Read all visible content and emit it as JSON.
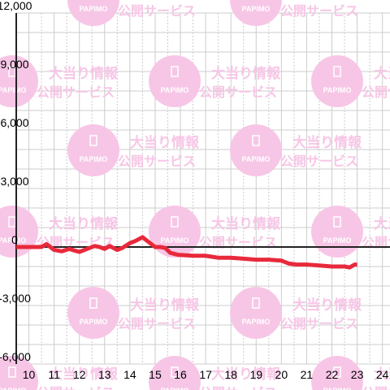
{
  "watermark": {
    "logo_text": "PAPIMO",
    "line1": "大当り情報",
    "line2": "公開サービス",
    "color": "#f7c6e6"
  },
  "colors": {
    "line": "#e8293b",
    "axis": "#222222",
    "grid_major": "#cccccc",
    "grid_minor": "#cccccc"
  },
  "chart_data": {
    "type": "line",
    "title": "",
    "xlabel": "",
    "ylabel": "",
    "xlim": [
      9.5,
      24.3
    ],
    "ylim": [
      -6000,
      12000
    ],
    "x_ticks": [
      10,
      11,
      12,
      13,
      14,
      15,
      16,
      17,
      18,
      19,
      20,
      21,
      22,
      23,
      24
    ],
    "y_ticks": [
      {
        "value": -6000,
        "label": "-6,000"
      },
      {
        "value": -3000,
        "label": "-3,000"
      },
      {
        "value": 0,
        "label": "0"
      },
      {
        "value": 3000,
        "label": "3,000"
      },
      {
        "value": 6000,
        "label": "6,000"
      },
      {
        "value": 9000,
        "label": "9,000"
      },
      {
        "value": 12000,
        "label": "12,000"
      }
    ],
    "grid": true,
    "series": [
      {
        "name": "",
        "color": "#e8293b",
        "x": [
          9.5,
          10.0,
          10.5,
          10.7,
          11.0,
          11.3,
          11.6,
          11.8,
          12.0,
          12.3,
          12.6,
          12.8,
          13.0,
          13.2,
          13.5,
          13.7,
          14.0,
          14.2,
          14.5,
          14.7,
          15.0,
          15.2,
          15.4,
          15.6,
          15.9,
          16.5,
          17.0,
          17.5,
          18.0,
          18.5,
          19.0,
          19.5,
          20.0,
          20.3,
          20.6,
          21.0,
          21.5,
          22.0,
          22.5,
          22.7,
          22.9,
          23.0
        ],
        "values": [
          0,
          0,
          0,
          150,
          -150,
          -220,
          -100,
          -180,
          -250,
          -100,
          50,
          0,
          -100,
          50,
          -150,
          -50,
          200,
          300,
          500,
          300,
          0,
          0,
          -50,
          -300,
          -400,
          -450,
          -450,
          -550,
          -550,
          -600,
          -650,
          -650,
          -700,
          -850,
          -900,
          -900,
          -950,
          -1000,
          -1000,
          -1050,
          -900,
          -900
        ]
      }
    ]
  }
}
